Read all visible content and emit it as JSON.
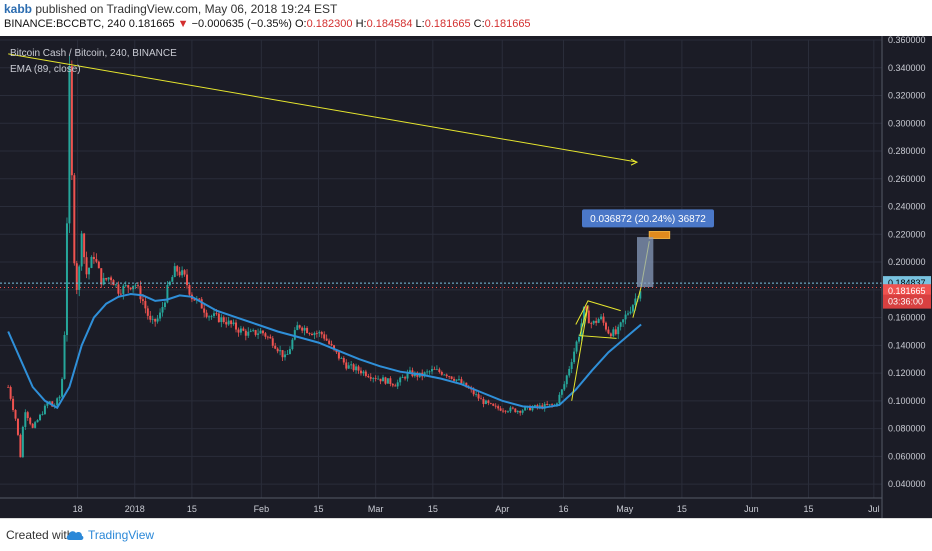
{
  "header": {
    "author": "kabb",
    "published_text": "published on TradingView.com, May 06, 2018 19:24 EST",
    "symbol": "BINANCE:BCCBTC, 240",
    "last": "0.181665",
    "change_arrow": "▼",
    "change": "−0.000635 (−0.35%)",
    "o_label": "O:",
    "o_value": "0.182300",
    "h_label": "H:",
    "h_value": "0.184584",
    "l_label": "L:",
    "l_value": "0.181665",
    "c_label": "C:",
    "c_value": "0.181665"
  },
  "legend": {
    "title": "Bitcoin Cash / Bitcoin, 240, BINANCE",
    "indicator": "EMA (89, close)"
  },
  "price_tags": {
    "current_line": "0.184837",
    "last_price": "0.181665",
    "countdown": "03:36:00"
  },
  "measure_label": "0.036872 (20.24%) 36872",
  "footer": {
    "created_with": "Created with",
    "brand": "TradingView"
  },
  "colors": {
    "background": "#1b1c26",
    "grid": "#2a2d3a",
    "up": "#26a69a",
    "down": "#ef5350",
    "ema": "#2f8fd8",
    "drawing": "#e6e62e",
    "measure": "#4b78c8",
    "last_price_tag": "#ef5350",
    "current_line_tag": "#79c3e0"
  },
  "chart_data": {
    "type": "candlestick",
    "title": "Bitcoin Cash / Bitcoin, 240, BINANCE",
    "xlabel": "",
    "ylabel": "",
    "ylim": [
      0.03,
      0.36
    ],
    "y_ticks": [
      "0.360000",
      "0.340000",
      "0.320000",
      "0.300000",
      "0.280000",
      "0.260000",
      "0.240000",
      "0.220000",
      "0.200000",
      "0.180000",
      "0.160000",
      "0.140000",
      "0.120000",
      "0.100000",
      "0.080000",
      "0.060000",
      "0.040000"
    ],
    "x_ticks": [
      "18",
      "2018",
      "15",
      "Feb",
      "15",
      "Mar",
      "15",
      "Apr",
      "16",
      "May",
      "15",
      "Jun",
      "15",
      "Jul"
    ],
    "x_tick_days": [
      -14,
      0,
      14,
      31,
      45,
      59,
      73,
      90,
      105,
      120,
      134,
      151,
      165,
      181
    ],
    "x_axis_note": "days since 2018-01-01",
    "price_path": [
      [
        -31,
        0.11
      ],
      [
        -29,
        0.085
      ],
      [
        -28,
        0.06
      ],
      [
        -27,
        0.095
      ],
      [
        -25,
        0.08
      ],
      [
        -23,
        0.09
      ],
      [
        -21,
        0.1
      ],
      [
        -20,
        0.095
      ],
      [
        -18,
        0.105
      ],
      [
        -17,
        0.16
      ],
      [
        -16,
        0.335
      ],
      [
        -15,
        0.21
      ],
      [
        -14,
        0.175
      ],
      [
        -13,
        0.225
      ],
      [
        -12,
        0.19
      ],
      [
        -10,
        0.205
      ],
      [
        -8,
        0.185
      ],
      [
        -6,
        0.19
      ],
      [
        -4,
        0.18
      ],
      [
        -2,
        0.182
      ],
      [
        0,
        0.185
      ],
      [
        2,
        0.172
      ],
      [
        4,
        0.155
      ],
      [
        6,
        0.16
      ],
      [
        8,
        0.18
      ],
      [
        10,
        0.195
      ],
      [
        12,
        0.19
      ],
      [
        14,
        0.175
      ],
      [
        16,
        0.17
      ],
      [
        18,
        0.162
      ],
      [
        20,
        0.16
      ],
      [
        22,
        0.158
      ],
      [
        25,
        0.152
      ],
      [
        28,
        0.148
      ],
      [
        31,
        0.15
      ],
      [
        34,
        0.142
      ],
      [
        37,
        0.13
      ],
      [
        40,
        0.155
      ],
      [
        43,
        0.15
      ],
      [
        46,
        0.148
      ],
      [
        49,
        0.135
      ],
      [
        52,
        0.125
      ],
      [
        55,
        0.122
      ],
      [
        58,
        0.118
      ],
      [
        61,
        0.115
      ],
      [
        64,
        0.112
      ],
      [
        67,
        0.12
      ],
      [
        70,
        0.118
      ],
      [
        73,
        0.122
      ],
      [
        76,
        0.12
      ],
      [
        79,
        0.115
      ],
      [
        82,
        0.108
      ],
      [
        85,
        0.1
      ],
      [
        88,
        0.095
      ],
      [
        91,
        0.094
      ],
      [
        94,
        0.093
      ],
      [
        97,
        0.095
      ],
      [
        100,
        0.096
      ],
      [
        103,
        0.097
      ],
      [
        105,
        0.11
      ],
      [
        107,
        0.13
      ],
      [
        109,
        0.15
      ],
      [
        110,
        0.165
      ],
      [
        112,
        0.155
      ],
      [
        114,
        0.16
      ],
      [
        116,
        0.15
      ],
      [
        118,
        0.148
      ],
      [
        120,
        0.16
      ],
      [
        122,
        0.17
      ],
      [
        124,
        0.182
      ]
    ],
    "ema_series": {
      "name": "EMA (89, close)",
      "points": [
        [
          -31,
          0.15
        ],
        [
          -28,
          0.13
        ],
        [
          -25,
          0.11
        ],
        [
          -22,
          0.1
        ],
        [
          -19,
          0.095
        ],
        [
          -16,
          0.11
        ],
        [
          -13,
          0.14
        ],
        [
          -10,
          0.16
        ],
        [
          -7,
          0.17
        ],
        [
          -4,
          0.175
        ],
        [
          -1,
          0.177
        ],
        [
          2,
          0.176
        ],
        [
          5,
          0.172
        ],
        [
          8,
          0.173
        ],
        [
          11,
          0.176
        ],
        [
          14,
          0.175
        ],
        [
          17,
          0.17
        ],
        [
          20,
          0.165
        ],
        [
          25,
          0.16
        ],
        [
          30,
          0.155
        ],
        [
          35,
          0.15
        ],
        [
          40,
          0.146
        ],
        [
          45,
          0.142
        ],
        [
          50,
          0.136
        ],
        [
          55,
          0.13
        ],
        [
          60,
          0.125
        ],
        [
          65,
          0.121
        ],
        [
          70,
          0.119
        ],
        [
          75,
          0.116
        ],
        [
          80,
          0.112
        ],
        [
          85,
          0.106
        ],
        [
          90,
          0.1
        ],
        [
          95,
          0.096
        ],
        [
          100,
          0.095
        ],
        [
          104,
          0.097
        ],
        [
          108,
          0.108
        ],
        [
          112,
          0.122
        ],
        [
          116,
          0.135
        ],
        [
          120,
          0.145
        ],
        [
          124,
          0.155
        ]
      ]
    },
    "drawings": {
      "trendline": [
        [
          -31,
          0.35
        ],
        [
          123,
          0.272
        ]
      ],
      "pennant_upper": [
        [
          108,
          0.155
        ],
        [
          111,
          0.172
        ],
        [
          119,
          0.165
        ]
      ],
      "pennant_lower": [
        [
          107,
          0.1
        ],
        [
          111,
          0.169
        ],
        [
          109,
          0.147
        ],
        [
          118,
          0.145
        ]
      ],
      "breakout_arrow": [
        [
          122,
          0.16
        ],
        [
          124,
          0.182
        ],
        [
          126,
          0.215
        ]
      ],
      "target_box": [
        [
          126,
          0.222
        ],
        [
          131,
          0.217
        ]
      ],
      "measure_box": [
        [
          123,
          0.218
        ],
        [
          127,
          0.182
        ]
      ]
    },
    "horizontal_lines": [
      0.184837,
      0.181665
    ],
    "grid": true
  }
}
